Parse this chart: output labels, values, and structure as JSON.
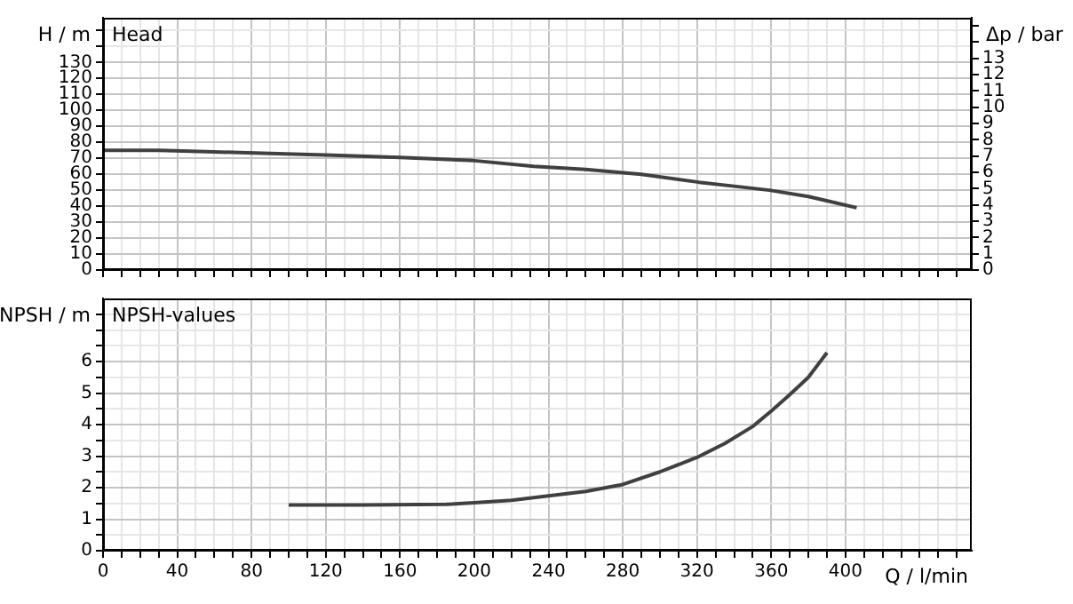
{
  "chart_data": [
    {
      "type": "line",
      "title": "Head",
      "ylabel": "H / m",
      "y2label": "Δp / bar",
      "xlim": [
        0,
        468
      ],
      "ylim": [
        0,
        158
      ],
      "y2lim": [
        0,
        15.5
      ],
      "xticks": [
        0,
        {
          "value": 10,
          "label": null
        },
        {
          "value": 20,
          "label": null
        },
        {
          "value": 30,
          "label": null
        },
        40,
        {
          "value": 50,
          "label": null
        },
        {
          "value": 60,
          "label": null
        },
        {
          "value": 70,
          "label": null
        },
        80,
        {
          "value": 90,
          "label": null
        },
        {
          "value": 100,
          "label": null
        },
        {
          "value": 110,
          "label": null
        },
        120,
        {
          "value": 130,
          "label": null
        },
        {
          "value": 140,
          "label": null
        },
        {
          "value": 150,
          "label": null
        },
        160,
        {
          "value": 170,
          "label": null
        },
        {
          "value": 180,
          "label": null
        },
        {
          "value": 190,
          "label": null
        },
        200,
        {
          "value": 210,
          "label": null
        },
        {
          "value": 220,
          "label": null
        },
        {
          "value": 230,
          "label": null
        },
        240,
        {
          "value": 250,
          "label": null
        },
        {
          "value": 260,
          "label": null
        },
        {
          "value": 270,
          "label": null
        },
        280,
        {
          "value": 290,
          "label": null
        },
        {
          "value": 300,
          "label": null
        },
        {
          "value": 310,
          "label": null
        },
        320,
        {
          "value": 330,
          "label": null
        },
        {
          "value": 340,
          "label": null
        },
        {
          "value": 350,
          "label": null
        },
        360,
        {
          "value": 370,
          "label": null
        },
        {
          "value": 380,
          "label": null
        },
        {
          "value": 390,
          "label": null
        },
        400,
        {
          "value": 410,
          "label": null
        },
        {
          "value": 420,
          "label": null
        },
        {
          "value": 430,
          "label": null
        },
        {
          "value": 440,
          "label": null
        },
        {
          "value": 450,
          "label": null
        },
        {
          "value": 460,
          "label": null
        }
      ],
      "yticks": [
        0,
        10,
        20,
        30,
        40,
        50,
        60,
        70,
        80,
        90,
        100,
        110,
        120,
        130,
        {
          "value": 140,
          "label": null
        },
        {
          "value": 150,
          "label": null
        }
      ],
      "y2ticks": [
        0,
        1,
        2,
        3,
        4,
        5,
        6,
        7,
        8,
        9,
        10,
        11,
        12,
        13,
        {
          "value": 14,
          "label": null
        },
        {
          "value": 15,
          "label": null
        }
      ],
      "tick_labels": "y",
      "grid": true,
      "marker": "none",
      "line_style": "solid",
      "series": [
        {
          "color": "#404040",
          "x": [
            0,
            30,
            60,
            90,
            120,
            160,
            200,
            232,
            260,
            290,
            321,
            340,
            359,
            380,
            395,
            406
          ],
          "values": [
            75,
            75,
            74,
            73,
            72,
            70.5,
            68.5,
            65,
            63,
            60,
            55,
            52.5,
            50,
            46,
            42,
            39
          ]
        }
      ]
    },
    {
      "type": "line",
      "title": "NPSH-values",
      "ylabel": "NPSH / m",
      "xlabel": "Q / l/min",
      "xlim": [
        0,
        468
      ],
      "ylim": [
        0,
        8
      ],
      "xticks": [
        0,
        {
          "value": 10,
          "label": null
        },
        {
          "value": 20,
          "label": null
        },
        {
          "value": 30,
          "label": null
        },
        40,
        {
          "value": 50,
          "label": null
        },
        {
          "value": 60,
          "label": null
        },
        {
          "value": 70,
          "label": null
        },
        80,
        {
          "value": 90,
          "label": null
        },
        {
          "value": 100,
          "label": null
        },
        {
          "value": 110,
          "label": null
        },
        120,
        {
          "value": 130,
          "label": null
        },
        {
          "value": 140,
          "label": null
        },
        {
          "value": 150,
          "label": null
        },
        160,
        {
          "value": 170,
          "label": null
        },
        {
          "value": 180,
          "label": null
        },
        {
          "value": 190,
          "label": null
        },
        200,
        {
          "value": 210,
          "label": null
        },
        {
          "value": 220,
          "label": null
        },
        {
          "value": 230,
          "label": null
        },
        240,
        {
          "value": 250,
          "label": null
        },
        {
          "value": 260,
          "label": null
        },
        {
          "value": 270,
          "label": null
        },
        280,
        {
          "value": 290,
          "label": null
        },
        {
          "value": 300,
          "label": null
        },
        {
          "value": 310,
          "label": null
        },
        320,
        {
          "value": 330,
          "label": null
        },
        {
          "value": 340,
          "label": null
        },
        {
          "value": 350,
          "label": null
        },
        360,
        {
          "value": 370,
          "label": null
        },
        {
          "value": 380,
          "label": null
        },
        {
          "value": 390,
          "label": null
        },
        400,
        {
          "value": 410,
          "label": null
        },
        {
          "value": 420,
          "label": null
        },
        {
          "value": 430,
          "label": null
        },
        {
          "value": 440,
          "label": null
        },
        {
          "value": 450,
          "label": null
        },
        {
          "value": 460,
          "label": null
        }
      ],
      "yticks": [
        0,
        {
          "value": 0.5,
          "label": null
        },
        1,
        {
          "value": 1.5,
          "label": null
        },
        2,
        {
          "value": 2.5,
          "label": null
        },
        3,
        {
          "value": 3.5,
          "label": null
        },
        4,
        {
          "value": 4.5,
          "label": null
        },
        5,
        {
          "value": 5.5,
          "label": null
        },
        6,
        {
          "value": 6.5,
          "label": null
        },
        {
          "value": 7,
          "label": null
        },
        {
          "value": 7.5,
          "label": null
        }
      ],
      "grid": true,
      "marker": "none",
      "line_style": "solid",
      "series": [
        {
          "color": "#404040",
          "x": [
            100,
            140,
            185,
            200,
            220,
            240,
            260,
            280,
            300,
            320,
            335,
            350,
            360,
            370,
            380,
            390
          ],
          "values": [
            1.45,
            1.45,
            1.47,
            1.52,
            1.6,
            1.74,
            1.88,
            2.1,
            2.5,
            2.96,
            3.4,
            3.94,
            4.43,
            4.95,
            5.5,
            6.28
          ]
        }
      ]
    }
  ]
}
